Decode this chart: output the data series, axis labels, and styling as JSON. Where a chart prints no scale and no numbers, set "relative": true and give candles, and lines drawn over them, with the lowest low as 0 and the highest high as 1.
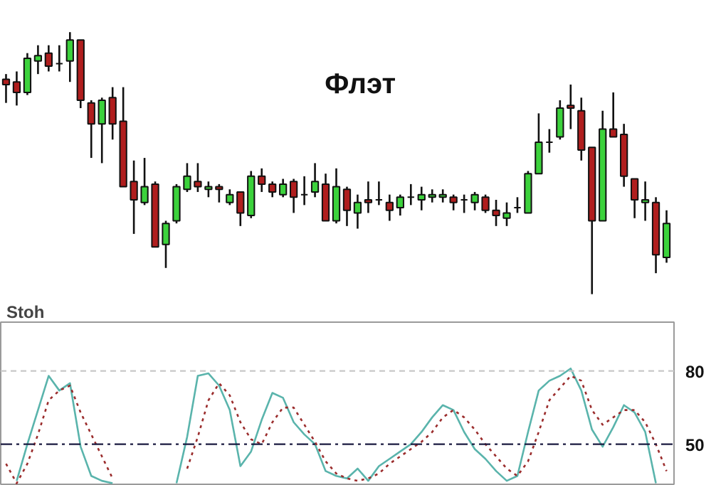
{
  "chart_data": [
    {
      "type": "candlestick",
      "relative": true,
      "annotations": [
        "Флэт"
      ],
      "categories": [
        null,
        null,
        null,
        null,
        null,
        null,
        null,
        null,
        null,
        null,
        null,
        null,
        null,
        null,
        null,
        null,
        null,
        null,
        null,
        null,
        null,
        null,
        null,
        null,
        null,
        null,
        null,
        null,
        null,
        null,
        null,
        null,
        null,
        null,
        null,
        null,
        null,
        null,
        null,
        null,
        null,
        null,
        null,
        null,
        null,
        null,
        null,
        null,
        null,
        null,
        null,
        null,
        null,
        null,
        null,
        null,
        null,
        null,
        null,
        null,
        null,
        null,
        null
      ],
      "ohlc": [
        [
          0.82,
          0.84,
          0.73,
          0.8
        ],
        [
          0.81,
          0.85,
          0.72,
          0.77
        ],
        [
          0.77,
          0.92,
          0.76,
          0.9
        ],
        [
          0.89,
          0.95,
          0.84,
          0.91
        ],
        [
          0.92,
          0.95,
          0.85,
          0.87
        ],
        [
          0.88,
          0.95,
          0.85,
          0.88
        ],
        [
          0.89,
          1.0,
          0.81,
          0.97
        ],
        [
          0.97,
          0.97,
          0.71,
          0.74
        ],
        [
          0.73,
          0.74,
          0.52,
          0.65
        ],
        [
          0.65,
          0.75,
          0.5,
          0.74
        ],
        [
          0.75,
          0.79,
          0.59,
          0.65
        ],
        [
          0.66,
          0.79,
          0.41,
          0.41
        ],
        [
          0.43,
          0.51,
          0.23,
          0.36
        ],
        [
          0.35,
          0.52,
          0.34,
          0.41
        ],
        [
          0.42,
          0.43,
          0.18,
          0.18
        ],
        [
          0.19,
          0.28,
          0.1,
          0.27
        ],
        [
          0.28,
          0.42,
          0.27,
          0.41
        ],
        [
          0.4,
          0.5,
          0.39,
          0.45
        ],
        [
          0.43,
          0.5,
          0.39,
          0.41
        ],
        [
          0.4,
          0.43,
          0.37,
          0.41
        ],
        [
          0.41,
          0.42,
          0.35,
          0.4
        ],
        [
          0.35,
          0.4,
          0.34,
          0.38
        ],
        [
          0.39,
          0.39,
          0.26,
          0.31
        ],
        [
          0.3,
          0.47,
          0.29,
          0.45
        ],
        [
          0.45,
          0.48,
          0.39,
          0.42
        ],
        [
          0.42,
          0.43,
          0.37,
          0.39
        ],
        [
          0.38,
          0.44,
          0.37,
          0.42
        ],
        [
          0.43,
          0.44,
          0.31,
          0.37
        ],
        [
          0.38,
          0.45,
          0.34,
          0.38
        ],
        [
          0.39,
          0.5,
          0.37,
          0.43
        ],
        [
          0.42,
          0.46,
          0.28,
          0.28
        ],
        [
          0.28,
          0.48,
          0.27,
          0.41
        ],
        [
          0.4,
          0.41,
          0.26,
          0.32
        ],
        [
          0.31,
          0.38,
          0.25,
          0.35
        ],
        [
          0.36,
          0.43,
          0.31,
          0.35
        ],
        [
          0.36,
          0.43,
          0.34,
          0.36
        ],
        [
          0.35,
          0.38,
          0.28,
          0.32
        ],
        [
          0.33,
          0.38,
          0.3,
          0.37
        ],
        [
          0.37,
          0.42,
          0.34,
          0.37
        ],
        [
          0.36,
          0.41,
          0.32,
          0.38
        ],
        [
          0.37,
          0.4,
          0.35,
          0.38
        ],
        [
          0.37,
          0.4,
          0.35,
          0.38
        ],
        [
          0.37,
          0.38,
          0.32,
          0.35
        ],
        [
          0.36,
          0.38,
          0.31,
          0.36
        ],
        [
          0.35,
          0.39,
          0.32,
          0.38
        ],
        [
          0.37,
          0.38,
          0.31,
          0.32
        ],
        [
          0.32,
          0.36,
          0.26,
          0.3
        ],
        [
          0.29,
          0.35,
          0.26,
          0.31
        ],
        [
          0.33,
          0.37,
          0.31,
          0.33
        ],
        [
          0.31,
          0.47,
          0.31,
          0.46
        ],
        [
          0.46,
          0.69,
          0.46,
          0.58
        ],
        [
          0.58,
          0.63,
          0.54,
          0.58
        ],
        [
          0.6,
          0.74,
          0.59,
          0.71
        ],
        [
          0.72,
          0.8,
          0.63,
          0.71
        ],
        [
          0.7,
          0.75,
          0.51,
          0.55
        ],
        [
          0.56,
          0.56,
          0.0,
          0.28
        ],
        [
          0.28,
          0.7,
          0.28,
          0.63
        ],
        [
          0.63,
          0.77,
          0.6,
          0.6
        ],
        [
          0.61,
          0.65,
          0.41,
          0.45
        ],
        [
          0.44,
          0.44,
          0.29,
          0.36
        ],
        [
          0.35,
          0.43,
          0.28,
          0.36
        ],
        [
          0.35,
          0.37,
          0.08,
          0.15
        ],
        [
          0.14,
          0.32,
          0.12,
          0.27
        ]
      ]
    },
    {
      "type": "line",
      "title": "Stoh",
      "ylim": [
        33,
        100
      ],
      "yticks": [
        80,
        50
      ],
      "tick_labels": "y",
      "grid": false,
      "categories": [
        null,
        null,
        null,
        null,
        null,
        null,
        null,
        null,
        null,
        null,
        null,
        null,
        null,
        null,
        null,
        null,
        null,
        null,
        null,
        null,
        null,
        null,
        null,
        null,
        null,
        null,
        null,
        null,
        null,
        null,
        null,
        null,
        null,
        null,
        null,
        null,
        null,
        null,
        null,
        null,
        null,
        null,
        null,
        null,
        null,
        null,
        null,
        null,
        null,
        null,
        null,
        null,
        null,
        null,
        null,
        null,
        null,
        null,
        null,
        null,
        null,
        null,
        null
      ],
      "ref_lines": [
        {
          "axis": "y",
          "value": 80,
          "label": null,
          "color": "#c8c8c8",
          "line_style": "dashed"
        },
        {
          "axis": "y",
          "value": 50,
          "label": null,
          "color": "#1a1a40",
          "line_style": "dashdot"
        }
      ],
      "series": [
        {
          "color": "#5ab4ac",
          "line_style": "solid",
          "values": [
            null,
            35,
            50,
            64,
            78,
            72,
            75,
            49,
            37,
            35,
            34,
            null,
            null,
            null,
            null,
            null,
            34,
            53,
            78,
            79,
            74,
            64,
            41,
            47,
            60,
            71,
            69,
            59,
            54,
            50,
            39,
            37,
            36,
            40,
            35,
            41,
            44,
            47,
            50,
            55,
            61,
            66,
            64,
            55,
            48,
            44,
            39,
            35,
            37,
            55,
            72,
            76,
            78,
            81,
            72,
            56,
            49,
            57,
            66,
            63,
            55,
            34,
            null
          ]
        },
        {
          "color": "#9b2d2d",
          "line_style": "dotted",
          "values": [
            42,
            34,
            42,
            54,
            68,
            72,
            74,
            63,
            54,
            45,
            36,
            null,
            null,
            null,
            null,
            null,
            null,
            40,
            53,
            68,
            75,
            70,
            59,
            52,
            50,
            59,
            65,
            65,
            58,
            51,
            43,
            38,
            36,
            35,
            36,
            38,
            42,
            45,
            48,
            51,
            55,
            61,
            64,
            61,
            56,
            50,
            45,
            40,
            37,
            43,
            55,
            68,
            73,
            78,
            76,
            64,
            58,
            61,
            64,
            64,
            59,
            50,
            39
          ]
        }
      ]
    }
  ]
}
